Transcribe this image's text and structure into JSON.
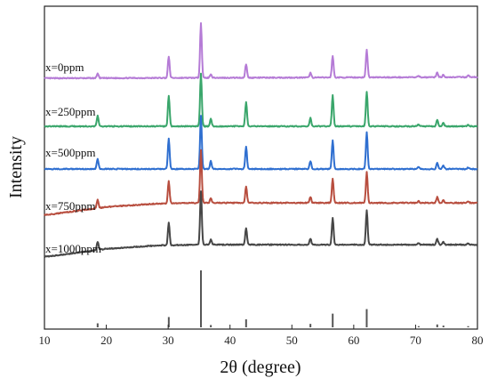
{
  "chart_data": {
    "type": "line",
    "xlabel": "2θ (degree)",
    "ylabel": "Intensity",
    "xlim": [
      10,
      80
    ],
    "xticks": [
      10,
      20,
      30,
      40,
      50,
      60,
      70,
      80
    ],
    "y_ticks_shown": false,
    "grid": false,
    "peaks": [
      {
        "x": 18.6,
        "ref": 0.07
      },
      {
        "x": 30.1,
        "ref": 0.18
      },
      {
        "x": 35.3,
        "ref": 1.0
      },
      {
        "x": 36.9,
        "ref": 0.04
      },
      {
        "x": 42.6,
        "ref": 0.14
      },
      {
        "x": 53.0,
        "ref": 0.06
      },
      {
        "x": 56.6,
        "ref": 0.24
      },
      {
        "x": 62.1,
        "ref": 0.32
      },
      {
        "x": 70.5,
        "ref": 0.02
      },
      {
        "x": 73.5,
        "ref": 0.05
      },
      {
        "x": 74.5,
        "ref": 0.03
      },
      {
        "x": 78.5,
        "ref": 0.02
      }
    ],
    "series": [
      {
        "name": "x=0ppm",
        "color": "#b57bd6",
        "baseline": [
          [
            10,
            0.0
          ],
          [
            80,
            0.03
          ]
        ],
        "peak_heights": [
          0.12,
          0.55,
          1.4,
          0.1,
          0.35,
          0.12,
          0.55,
          0.7,
          0.03,
          0.12,
          0.06,
          0.04
        ]
      },
      {
        "name": "x=250ppm",
        "color": "#3aa66b",
        "baseline": [
          [
            10,
            0.0
          ],
          [
            80,
            0.0
          ]
        ],
        "peak_heights": [
          0.25,
          0.75,
          1.3,
          0.18,
          0.6,
          0.2,
          0.75,
          0.85,
          0.05,
          0.16,
          0.08,
          0.04
        ]
      },
      {
        "name": "x=500ppm",
        "color": "#2f6fd0",
        "baseline": [
          [
            10,
            0.0
          ],
          [
            80,
            0.0
          ]
        ],
        "peak_heights": [
          0.25,
          0.75,
          1.3,
          0.2,
          0.55,
          0.2,
          0.7,
          0.9,
          0.05,
          0.16,
          0.08,
          0.04
        ]
      },
      {
        "name": "x=750ppm",
        "color": "#b84e3f",
        "baseline": [
          [
            10,
            -0.15
          ],
          [
            20,
            0.05
          ],
          [
            28,
            0.13
          ],
          [
            35,
            0.15
          ],
          [
            80,
            0.15
          ]
        ],
        "peak_heights": [
          0.2,
          0.55,
          1.3,
          0.12,
          0.4,
          0.15,
          0.6,
          0.75,
          0.04,
          0.14,
          0.06,
          0.03
        ]
      },
      {
        "name": "x=1000ppm",
        "color": "#474747",
        "baseline": [
          [
            10,
            -0.15
          ],
          [
            20,
            0.05
          ],
          [
            28,
            0.13
          ],
          [
            35,
            0.15
          ],
          [
            80,
            0.15
          ]
        ],
        "peak_heights": [
          0.2,
          0.55,
          1.3,
          0.12,
          0.4,
          0.15,
          0.65,
          0.85,
          0.04,
          0.14,
          0.06,
          0.03
        ]
      }
    ]
  }
}
